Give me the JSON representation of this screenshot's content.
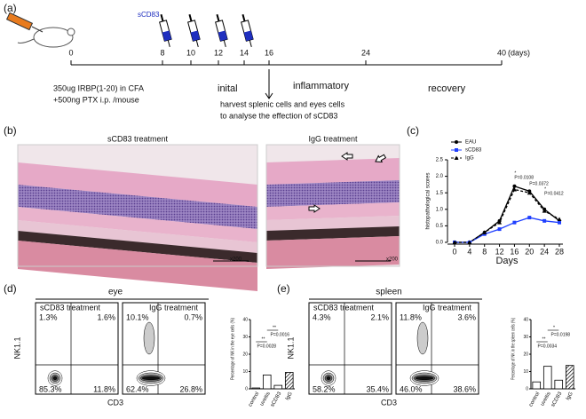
{
  "panels": {
    "a": {
      "label": "(a)",
      "timeline_ticks": [
        0,
        8,
        10,
        12,
        14,
        16,
        24,
        40
      ],
      "unit": "(days)",
      "injection": "sCD83",
      "protocol": [
        "350ug IRBP(1-20) in CFA",
        "+500ng PTX i.p. /mouse"
      ],
      "phases": [
        "inital",
        "inflammatory",
        "recovery"
      ],
      "harvest": [
        "harvest splenic cells and eyes cells",
        "to analyse the effection of sCD83"
      ]
    },
    "b": {
      "label": "(b)",
      "titles": [
        "sCD83 treatment",
        "IgG treatment"
      ],
      "magnification": [
        "x200",
        "x200"
      ]
    },
    "c": {
      "label": "(c)"
    },
    "d": {
      "label": "(d)",
      "tissue": "eye",
      "y_label": "NK1.1",
      "x_label": "CD3",
      "plots": [
        {
          "title": "sCD83 treatment",
          "quadrants": [
            "1.3%",
            "1.6%",
            "85.3%",
            "11.8%"
          ]
        },
        {
          "title": "IgG treatment",
          "quadrants": [
            "10.1%",
            "0.7%",
            "62.4%",
            "26.8%"
          ]
        }
      ]
    },
    "e": {
      "label": "(e)",
      "tissue": "spleen",
      "y_label": "NK1.1",
      "x_label": "CD3",
      "plots": [
        {
          "title": "sCD83 treatment",
          "quadrants": [
            "4.3%",
            "2.1%",
            "58.2%",
            "35.4%"
          ]
        },
        {
          "title": "IgG treatment",
          "quadrants": [
            "11.8%",
            "3.6%",
            "46.0%",
            "38.6%"
          ]
        }
      ]
    }
  },
  "chart_data": [
    {
      "type": "line",
      "x_label": "Days",
      "y_label": "histopathological scores",
      "x": [
        0,
        4,
        8,
        12,
        16,
        20,
        24,
        28
      ],
      "xlim": [
        0,
        28
      ],
      "xticks": [
        0,
        4,
        8,
        12,
        16,
        20,
        24,
        28
      ],
      "ylim": [
        0,
        2.5
      ],
      "yticks": [
        {
          "value": 0,
          "label": "0.0"
        },
        0.5,
        {
          "value": 1,
          "label": "1.0"
        },
        1.5,
        {
          "value": 2,
          "label": "2.0"
        },
        2.5
      ],
      "series": [
        {
          "name": "EAU",
          "color": "#000000",
          "values": [
            0,
            0,
            0.3,
            0.65,
            1.7,
            1.55,
            1.0,
            0.65
          ]
        },
        {
          "name": "sCD83",
          "color": "#1f3fff",
          "values": [
            0,
            0,
            0.25,
            0.4,
            0.6,
            0.75,
            0.65,
            0.6
          ]
        },
        {
          "name": "IgG",
          "color": "#000000",
          "values": [
            0,
            0,
            0.3,
            0.6,
            1.6,
            1.5,
            0.95,
            0.7
          ]
        }
      ],
      "annotations": [
        "*",
        "P=0.0108",
        "P=0.0372",
        "*",
        "P=0.0412"
      ]
    },
    {
      "type": "bar",
      "y_label": "Percentage of NK in the eye cells (%)",
      "categories": [
        "control",
        "uveitis",
        "sCD83",
        "IgG"
      ],
      "values": [
        0.5,
        8,
        2,
        9.5
      ],
      "ylim": [
        0,
        40
      ],
      "yticks": [
        0,
        10,
        20,
        30,
        40
      ],
      "annotations": [
        "**",
        "P=0.0028",
        "**",
        "P=0.0016"
      ]
    },
    {
      "type": "bar",
      "y_label": "Percentage of NK in the spleen cells (%)",
      "categories": [
        "control",
        "uveitis",
        "sCD83",
        "IgG"
      ],
      "values": [
        4,
        13,
        5,
        13.5
      ],
      "ylim": [
        0,
        40
      ],
      "yticks": [
        0,
        10,
        20,
        30,
        40
      ],
      "annotations": [
        "**",
        "P=0.0034",
        "*",
        "P=0.0198"
      ]
    }
  ]
}
